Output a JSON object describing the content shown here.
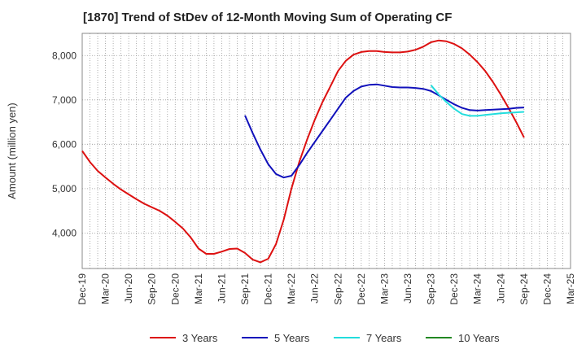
{
  "chart_data": {
    "type": "line",
    "title": "[1870]  Trend of StDev of 12-Month Moving Sum of Operating CF",
    "ylabel": "Amount (million yen)",
    "xlabel": "",
    "x_start": "Dec-19",
    "x_end": "Mar-25",
    "x_tick_labels": [
      "Dec-19",
      "Mar-20",
      "Jun-20",
      "Sep-20",
      "Dec-20",
      "Mar-21",
      "Jun-21",
      "Sep-21",
      "Dec-21",
      "Mar-22",
      "Jun-22",
      "Sep-22",
      "Dec-22",
      "Mar-23",
      "Jun-23",
      "Sep-23",
      "Dec-23",
      "Mar-24",
      "Jun-24",
      "Sep-24",
      "Dec-24",
      "Mar-25"
    ],
    "ylim": [
      3200,
      8500
    ],
    "y_ticks": [
      4000,
      5000,
      6000,
      7000,
      8000
    ],
    "y_tick_labels": [
      "4,000",
      "5,000",
      "6,000",
      "7,000",
      "8,000"
    ],
    "grid": true,
    "legend_position": "bottom",
    "series": [
      {
        "name": "3 Years",
        "color": "#dd1111",
        "points": [
          [
            "Dec-19",
            5850
          ],
          [
            "Jan-20",
            5600
          ],
          [
            "Feb-20",
            5400
          ],
          [
            "Mar-20",
            5250
          ],
          [
            "Apr-20",
            5110
          ],
          [
            "May-20",
            4980
          ],
          [
            "Jun-20",
            4870
          ],
          [
            "Jul-20",
            4760
          ],
          [
            "Aug-20",
            4660
          ],
          [
            "Sep-20",
            4580
          ],
          [
            "Oct-20",
            4500
          ],
          [
            "Nov-20",
            4390
          ],
          [
            "Dec-20",
            4250
          ],
          [
            "Jan-21",
            4100
          ],
          [
            "Feb-21",
            3900
          ],
          [
            "Mar-21",
            3650
          ],
          [
            "Apr-21",
            3530
          ],
          [
            "May-21",
            3530
          ],
          [
            "Jun-21",
            3580
          ],
          [
            "Jul-21",
            3640
          ],
          [
            "Aug-21",
            3650
          ],
          [
            "Sep-21",
            3550
          ],
          [
            "Oct-21",
            3400
          ],
          [
            "Nov-21",
            3340
          ],
          [
            "Dec-21",
            3420
          ],
          [
            "Jan-22",
            3750
          ],
          [
            "Feb-22",
            4300
          ],
          [
            "Mar-22",
            5000
          ],
          [
            "Apr-22",
            5600
          ],
          [
            "May-22",
            6100
          ],
          [
            "Jun-22",
            6550
          ],
          [
            "Jul-22",
            6950
          ],
          [
            "Aug-22",
            7300
          ],
          [
            "Sep-22",
            7650
          ],
          [
            "Oct-22",
            7880
          ],
          [
            "Nov-22",
            8020
          ],
          [
            "Dec-22",
            8080
          ],
          [
            "Jan-23",
            8100
          ],
          [
            "Feb-23",
            8100
          ],
          [
            "Mar-23",
            8080
          ],
          [
            "Apr-23",
            8070
          ],
          [
            "May-23",
            8070
          ],
          [
            "Jun-23",
            8090
          ],
          [
            "Jul-23",
            8130
          ],
          [
            "Aug-23",
            8200
          ],
          [
            "Sep-23",
            8300
          ],
          [
            "Oct-23",
            8340
          ],
          [
            "Nov-23",
            8320
          ],
          [
            "Dec-23",
            8260
          ],
          [
            "Jan-24",
            8160
          ],
          [
            "Feb-24",
            8020
          ],
          [
            "Mar-24",
            7850
          ],
          [
            "Apr-24",
            7650
          ],
          [
            "May-24",
            7400
          ],
          [
            "Jun-24",
            7120
          ],
          [
            "Jul-24",
            6820
          ],
          [
            "Aug-24",
            6500
          ],
          [
            "Sep-24",
            6150
          ]
        ]
      },
      {
        "name": "5 Years",
        "color": "#1111bb",
        "points": [
          [
            "Sep-21",
            6650
          ],
          [
            "Oct-21",
            6250
          ],
          [
            "Nov-21",
            5880
          ],
          [
            "Dec-21",
            5550
          ],
          [
            "Jan-22",
            5330
          ],
          [
            "Feb-22",
            5250
          ],
          [
            "Mar-22",
            5290
          ],
          [
            "Apr-22",
            5530
          ],
          [
            "May-22",
            5800
          ],
          [
            "Jun-22",
            6050
          ],
          [
            "Jul-22",
            6300
          ],
          [
            "Aug-22",
            6550
          ],
          [
            "Sep-22",
            6800
          ],
          [
            "Oct-22",
            7050
          ],
          [
            "Nov-22",
            7200
          ],
          [
            "Dec-22",
            7300
          ],
          [
            "Jan-23",
            7340
          ],
          [
            "Feb-23",
            7350
          ],
          [
            "Mar-23",
            7320
          ],
          [
            "Apr-23",
            7290
          ],
          [
            "May-23",
            7280
          ],
          [
            "Jun-23",
            7280
          ],
          [
            "Jul-23",
            7270
          ],
          [
            "Aug-23",
            7250
          ],
          [
            "Sep-23",
            7200
          ],
          [
            "Oct-23",
            7100
          ],
          [
            "Nov-23",
            7000
          ],
          [
            "Dec-23",
            6900
          ],
          [
            "Jan-24",
            6820
          ],
          [
            "Feb-24",
            6770
          ],
          [
            "Mar-24",
            6760
          ],
          [
            "Apr-24",
            6770
          ],
          [
            "May-24",
            6780
          ],
          [
            "Jun-24",
            6790
          ],
          [
            "Jul-24",
            6800
          ],
          [
            "Aug-24",
            6820
          ],
          [
            "Sep-24",
            6830
          ]
        ]
      },
      {
        "name": "7 Years",
        "color": "#22dddd",
        "points": [
          [
            "Sep-23",
            7330
          ],
          [
            "Oct-23",
            7120
          ],
          [
            "Nov-23",
            6950
          ],
          [
            "Dec-23",
            6800
          ],
          [
            "Jan-24",
            6680
          ],
          [
            "Feb-24",
            6640
          ],
          [
            "Mar-24",
            6640
          ],
          [
            "Apr-24",
            6660
          ],
          [
            "May-24",
            6680
          ],
          [
            "Jun-24",
            6700
          ],
          [
            "Jul-24",
            6710
          ],
          [
            "Aug-24",
            6720
          ],
          [
            "Sep-24",
            6730
          ]
        ]
      },
      {
        "name": "10 Years",
        "color": "#228822",
        "points": []
      }
    ]
  }
}
